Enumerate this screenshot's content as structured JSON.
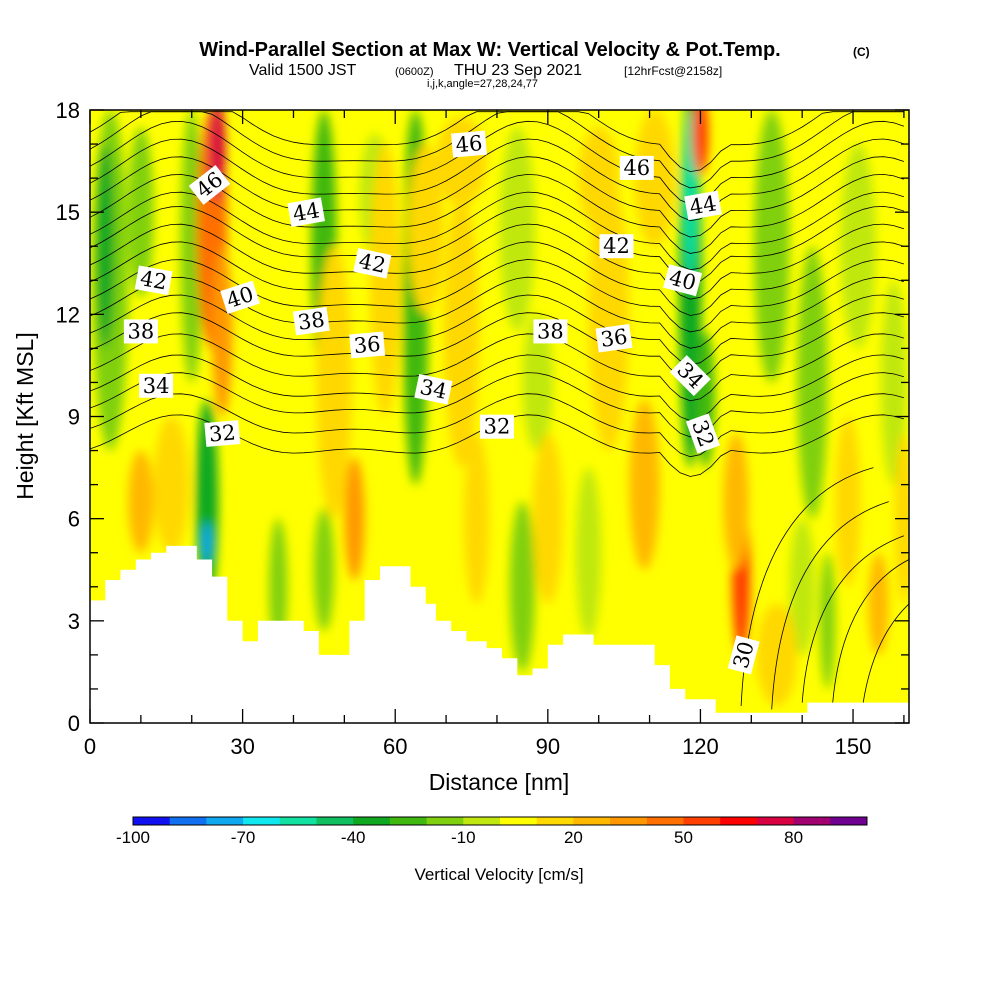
{
  "title": "Wind-Parallel Section at Max W: Vertical Velocity & Pot.Temp.",
  "copyright": "(C)",
  "subtitle": {
    "valid": "Valid 1500 JST",
    "utc": "(0600Z)",
    "date": "THU 23 Sep 2021",
    "fcst": "[12hrFcst@2158z]",
    "indices": "i,j,k,angle=27,28,24,77"
  },
  "chart_data": {
    "type": "heatmap",
    "xlabel": "Distance [nm]",
    "ylabel": "Height [Kft MSL]",
    "xlim": [
      0,
      161
    ],
    "ylim": [
      0,
      18
    ],
    "x_ticks": [
      "0",
      "30",
      "60",
      "90",
      "120",
      "150"
    ],
    "y_ticks": [
      "0",
      "3",
      "6",
      "9",
      "12",
      "15",
      "18"
    ],
    "colorbar": {
      "label": "Vertical Velocity [cm/s]",
      "range": [
        -100,
        100
      ],
      "step": 10,
      "tick_labels": [
        "-100",
        "-70",
        "-40",
        "-10",
        "20",
        "50",
        "80"
      ],
      "colors": [
        "#1010f0",
        "#1070f0",
        "#10a8f0",
        "#10e8f0",
        "#10e0a0",
        "#10c060",
        "#10a820",
        "#40b810",
        "#80d010",
        "#c0e810",
        "#ffff00",
        "#ffd800",
        "#ffb800",
        "#ff9800",
        "#ff7000",
        "#ff4000",
        "#ff0000",
        "#d80040",
        "#a00070",
        "#700090"
      ]
    },
    "updraft_columns_nm": [
      25,
      52,
      73,
      109,
      128,
      155
    ],
    "downdraft_columns_nm": [
      4,
      23,
      46,
      64,
      118
    ],
    "theta_contour_labels": [
      {
        "text": "46",
        "x": 23.5,
        "y": 15.8,
        "rot": -38
      },
      {
        "text": "44",
        "x": 42.5,
        "y": 15.0,
        "rot": -10
      },
      {
        "text": "42",
        "x": 12.5,
        "y": 13.0,
        "rot": 10
      },
      {
        "text": "42",
        "x": 55.5,
        "y": 13.5,
        "rot": 12
      },
      {
        "text": "40",
        "x": 29.5,
        "y": 12.5,
        "rot": -18
      },
      {
        "text": "38",
        "x": 10.0,
        "y": 11.5,
        "rot": 0
      },
      {
        "text": "38",
        "x": 43.5,
        "y": 11.8,
        "rot": -8
      },
      {
        "text": "36",
        "x": 54.5,
        "y": 11.1,
        "rot": -5
      },
      {
        "text": "34",
        "x": 13.0,
        "y": 9.9,
        "rot": 0
      },
      {
        "text": "34",
        "x": 67.5,
        "y": 9.8,
        "rot": 12
      },
      {
        "text": "32",
        "x": 26.0,
        "y": 8.5,
        "rot": -5
      },
      {
        "text": "32",
        "x": 80.0,
        "y": 8.7,
        "rot": 0
      },
      {
        "text": "46",
        "x": 74.5,
        "y": 17.0,
        "rot": -5
      },
      {
        "text": "46",
        "x": 107.5,
        "y": 16.3,
        "rot": 0
      },
      {
        "text": "44",
        "x": 120.5,
        "y": 15.2,
        "rot": -10
      },
      {
        "text": "42",
        "x": 103.5,
        "y": 14.0,
        "rot": 0
      },
      {
        "text": "40",
        "x": 116.5,
        "y": 13.0,
        "rot": 15
      },
      {
        "text": "38",
        "x": 90.5,
        "y": 11.5,
        "rot": 0
      },
      {
        "text": "36",
        "x": 103.0,
        "y": 11.3,
        "rot": -8
      },
      {
        "text": "34",
        "x": 118.0,
        "y": 10.2,
        "rot": 45
      },
      {
        "text": "32",
        "x": 120.5,
        "y": 8.5,
        "rot": 70
      },
      {
        "text": "30",
        "x": 128.5,
        "y": 2.0,
        "rot": -75
      }
    ],
    "terrain_profile": [
      [
        0,
        3.6
      ],
      [
        3,
        4.2
      ],
      [
        6,
        4.5
      ],
      [
        9,
        4.8
      ],
      [
        12,
        5.0
      ],
      [
        15,
        5.2
      ],
      [
        21,
        4.8
      ],
      [
        24,
        4.3
      ],
      [
        27,
        3.0
      ],
      [
        30,
        2.4
      ],
      [
        33,
        3.0
      ],
      [
        42,
        2.7
      ],
      [
        45,
        2.0
      ],
      [
        51,
        3.0
      ],
      [
        54,
        4.2
      ],
      [
        57,
        4.6
      ],
      [
        63,
        4.0
      ],
      [
        66,
        3.5
      ],
      [
        68,
        3.0
      ],
      [
        71,
        2.7
      ],
      [
        74,
        2.4
      ],
      [
        78,
        2.2
      ],
      [
        81,
        1.9
      ],
      [
        84,
        1.4
      ],
      [
        87,
        1.6
      ],
      [
        90,
        2.3
      ],
      [
        93,
        2.6
      ],
      [
        99,
        2.3
      ],
      [
        111,
        1.7
      ],
      [
        114,
        1.0
      ],
      [
        117,
        0.7
      ],
      [
        123,
        0.3
      ],
      [
        141,
        0.6
      ],
      [
        161,
        0.6
      ]
    ]
  }
}
